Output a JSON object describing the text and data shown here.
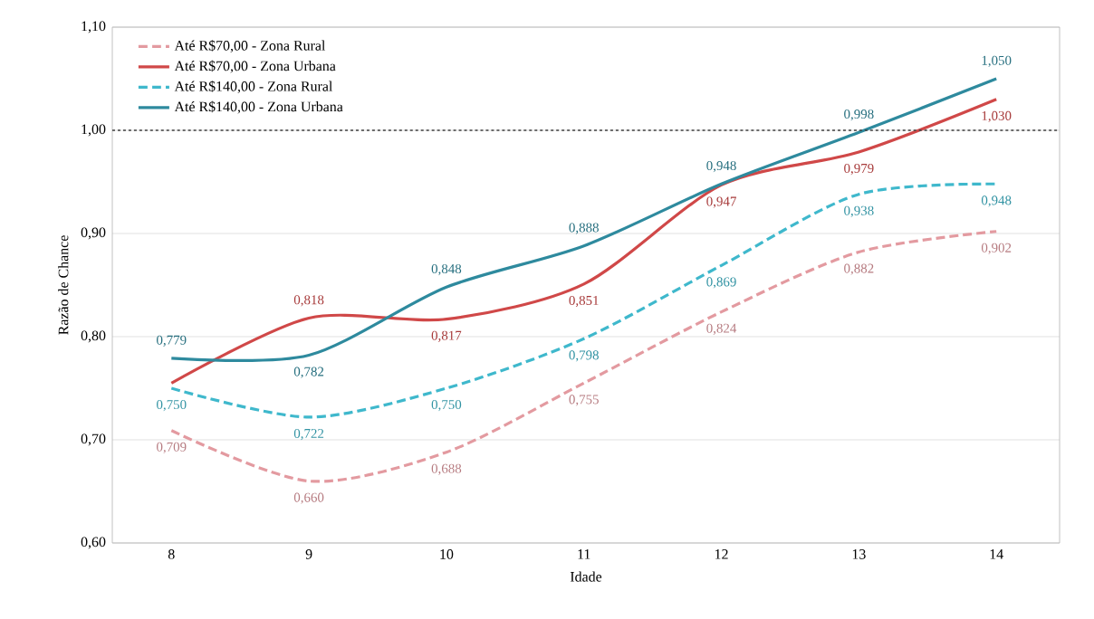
{
  "chart_data": {
    "type": "line",
    "xlabel": "Idade",
    "ylabel": "Razão de Chance",
    "categories": [
      "8",
      "9",
      "10",
      "11",
      "12",
      "13",
      "14"
    ],
    "ylim": [
      0.6,
      1.1
    ],
    "yticks": [
      {
        "value": 0.6,
        "label": "0,60"
      },
      {
        "value": 0.7,
        "label": "0,70"
      },
      {
        "value": 0.8,
        "label": "0,80"
      },
      {
        "value": 0.9,
        "label": "0,90"
      },
      {
        "value": 1.0,
        "label": "1,00"
      },
      {
        "value": 1.1,
        "label": "1,10"
      }
    ],
    "grid": "y",
    "legend": "top left",
    "ref_lines": [
      {
        "axis": "y",
        "value": 1.0,
        "color": "#404040",
        "line_style": "dotted"
      }
    ],
    "series": [
      {
        "name": "Até R$70,00 - Zona Rural",
        "color": "#e39aa0",
        "line_style": "dashed",
        "values": [
          0.709,
          0.66,
          0.688,
          0.755,
          0.824,
          0.882,
          0.902
        ],
        "value_labels": [
          "0,709",
          "0,660",
          "0,688",
          "0,755",
          "0,824",
          "0,882",
          "0,902"
        ]
      },
      {
        "name": "Até R$70,00 - Zona Urbana",
        "color": "#d04848",
        "line_style": "solid",
        "values": [
          0.755,
          0.818,
          0.817,
          0.851,
          0.947,
          0.979,
          1.03
        ],
        "value_labels": [
          null,
          "0,818",
          "0,817",
          "0,851",
          "0,947",
          "0,979",
          "1,030"
        ]
      },
      {
        "name": "Até R$140,00 - Zona Rural",
        "color": "#3fb8cc",
        "line_style": "dashed",
        "values": [
          0.75,
          0.722,
          0.75,
          0.798,
          0.869,
          0.938,
          0.948
        ],
        "value_labels": [
          "0,750",
          "0,722",
          "0,750",
          "0,798",
          "0,869",
          "0,938",
          "0,948"
        ]
      },
      {
        "name": "Até R$140,00 - Zona Urbana",
        "color": "#2e8a9e",
        "line_style": "solid",
        "values": [
          0.779,
          0.782,
          0.848,
          0.888,
          0.948,
          0.998,
          1.05
        ],
        "value_labels": [
          "0,779",
          "0,782",
          "0,848",
          "0,888",
          "0,948",
          "0,998",
          "1,050"
        ]
      }
    ]
  }
}
